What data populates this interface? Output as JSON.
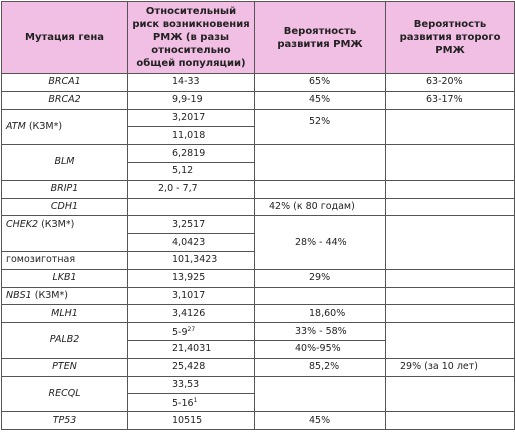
{
  "table": {
    "header": [
      "Мутация гена",
      "Относительный риск возникновения РМЖ (в разы относительно общей популяции)",
      "Вероятность развития РМЖ",
      "Вероятность развития второго РМЖ"
    ],
    "rows": [
      {
        "gene": "BRCA1",
        "risk": "14-33",
        "prob": "65%",
        "second": "63-20%"
      },
      {
        "gene": "BRCA2",
        "risk": "9,9-19",
        "prob": "45%",
        "second": "63-17%"
      },
      {
        "gene": "ATM",
        "note": "(КЗМ*)",
        "risk": [
          "3,2017",
          "11,018"
        ],
        "prob": "52%"
      },
      {
        "gene": "BLM",
        "risk": [
          "6,2819",
          "5,12"
        ]
      },
      {
        "gene": "BRIP1",
        "risk": "2,0 -  7,7"
      },
      {
        "gene": "CDH1",
        "prob": "42% (к 80 годам)"
      },
      {
        "gene": "CHEK2",
        "note": "(КЗМ*)",
        "risk": [
          "3,2517",
          "4,0423"
        ],
        "homozygous": {
          "label": "гомозиготная",
          "risk": "101,3423"
        },
        "prob": "28% - 44%"
      },
      {
        "gene": "LKB1",
        "risk": "13,925",
        "prob": "29%"
      },
      {
        "gene": "NBS1",
        "note": "(КЗМ*)",
        "risk": "3,1017"
      },
      {
        "gene": "MLH1",
        "risk": "3,4126",
        "prob": "18,60%"
      },
      {
        "gene": "PALB2",
        "risk": [
          {
            "text": "5-9",
            "sup": "27"
          },
          "21,4031"
        ],
        "prob": [
          "33% - 58%",
          "40%-95%"
        ]
      },
      {
        "gene": "PTEN",
        "risk": "25,428",
        "prob": "85,2%",
        "second": "29% (за 10 лет)"
      },
      {
        "gene": "RECQL",
        "risk": [
          "33,53",
          {
            "text": "5-16",
            "sup": "1"
          }
        ]
      },
      {
        "gene": "TP53",
        "risk": "10515",
        "prob": "45%"
      }
    ]
  }
}
